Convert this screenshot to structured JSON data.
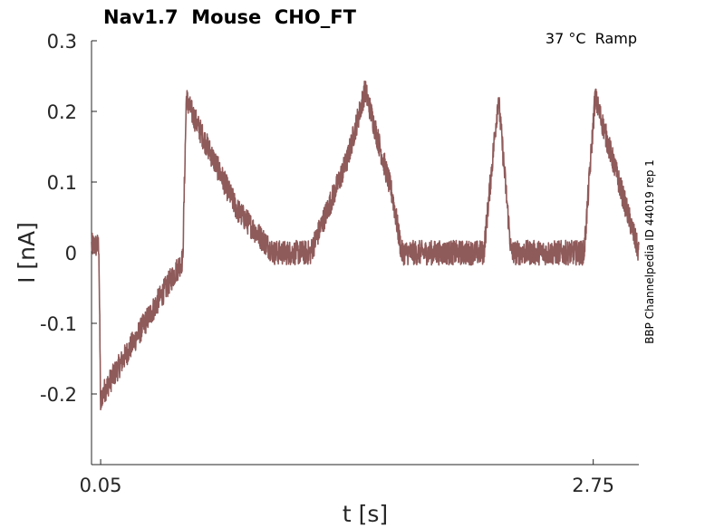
{
  "chart_data": {
    "type": "line",
    "title": "Nav1.7  Mouse  CHO_FT",
    "annotation": "37 °C  Ramp",
    "side_label": "BBP Channelpedia ID 44019 rep 1",
    "xlabel": "t [s]",
    "ylabel": "I [nA]",
    "xlim": [
      0.0,
      3.0
    ],
    "ylim": [
      -0.3,
      0.3
    ],
    "xticks": [
      0.05,
      2.75
    ],
    "xtick_labels": [
      "0.05",
      "2.75"
    ],
    "yticks": [
      0.3,
      0.2,
      0.1,
      0,
      -0.1,
      -0.2
    ],
    "ytick_labels": [
      "0.3",
      "0.2",
      "0.1",
      "0",
      "-0.1",
      "-0.2"
    ],
    "grid": false,
    "series": [
      {
        "color": "#8f5a5a",
        "x": [
          0.0,
          0.04,
          0.05,
          0.06,
          0.5,
          0.52,
          0.53,
          0.6,
          0.8,
          1.0,
          1.2,
          1.4,
          1.5,
          1.65,
          1.7,
          1.8,
          2.0,
          2.15,
          2.23,
          2.3,
          2.37,
          2.6,
          2.65,
          2.7,
          2.76,
          3.0
        ],
        "y": [
          0.01,
          0.01,
          -0.22,
          -0.2,
          -0.01,
          0.22,
          0.21,
          0.17,
          0.06,
          0.0,
          0.0,
          0.13,
          0.23,
          0.08,
          0.0,
          0.0,
          0.0,
          0.0,
          0.22,
          0.0,
          0.0,
          0.0,
          0.0,
          0.0,
          0.22,
          0.0
        ]
      }
    ]
  }
}
